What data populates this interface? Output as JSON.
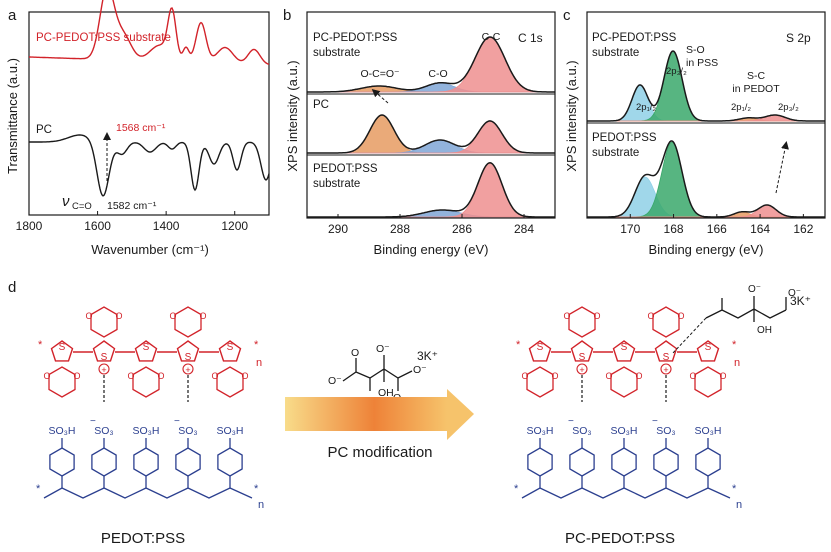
{
  "colors": {
    "red": "#d2232a",
    "black": "#1a1a1a",
    "blue": "#2b3f8f",
    "peak_red": "#ee8f8f",
    "peak_orange": "#e69b62",
    "peak_blue": "#7fa6d6",
    "peak_green": "#39a86b",
    "peak_cyan": "#8fd0e6",
    "arrow_start": "#f8dc8a",
    "arrow_mid": "#ee8238",
    "arrow_end": "#f6c36b"
  },
  "panel_labels": {
    "a": "a",
    "b": "b",
    "c": "c",
    "d": "d"
  },
  "panel_a": {
    "xlabel": "Wavenumber (cm⁻¹)",
    "ylabel": "Transmittance (a.u.)",
    "ticks": [
      "1800",
      "1600",
      "1400",
      "1200"
    ],
    "label_top": "PC-PEDOT:PSS substrate",
    "label_bottom": "PC",
    "ann_red": "1568 cm⁻¹",
    "ann_black": "1582 cm⁻¹",
    "nu_symbol": "ν",
    "nu_sub": "C=O"
  },
  "panel_b": {
    "corner": "C 1s",
    "xlabel": "Binding energy (eV)",
    "ylabel": "XPS intensity (a.u.)",
    "ticks": [
      "290",
      "288",
      "286",
      "284"
    ],
    "label_1a": "PC-PEDOT:PSS",
    "label_1b": "substrate",
    "label_2": "PC",
    "label_3a": "PEDOT:PSS",
    "label_3b": "substrate",
    "peak_cc": "C-C",
    "peak_co": "C-O",
    "peak_oco": "O-C=O⁻"
  },
  "panel_c": {
    "corner": "S 2p",
    "xlabel": "Binding energy (eV)",
    "ylabel": "XPS intensity (a.u.)",
    "ticks": [
      "170",
      "168",
      "166",
      "164",
      "162"
    ],
    "label_1a": "PC-PEDOT:PSS",
    "label_1b": "substrate",
    "label_2a": "PEDOT:PSS",
    "label_2b": "substrate",
    "so_a": "S-O",
    "so_b": "in PSS",
    "sc_a": "S-C",
    "sc_b": "in PEDOT",
    "p12": "2p₁/₂",
    "p32": "2p₃/₂"
  },
  "panel_d": {
    "reagent_charge": "3K⁺",
    "reagent_oh": "OH",
    "reagent_om": "O⁻",
    "arrow_label": "PC modification",
    "left_caption": "PEDOT:PSS",
    "right_caption": "PC-PEDOT:PSS",
    "so3h": "SO₃H",
    "so3": "SO₃",
    "thiophene_s": "S",
    "ring_o": "O",
    "index_n": "n",
    "end_star": "*",
    "minus": "−",
    "plus": "+"
  },
  "chart_data": [
    {
      "type": "line",
      "xlabel": "Wavenumber (cm⁻¹)",
      "ylabel": "Transmittance (a.u.)",
      "xlim": [
        1800,
        1100
      ],
      "x_ticks": [
        1800,
        1600,
        1400,
        1200
      ],
      "series": [
        {
          "name": "PC-PEDOT:PSS substrate",
          "minimum_at": 1568
        },
        {
          "name": "PC",
          "minimum_at": 1582
        }
      ]
    },
    {
      "type": "line",
      "xlabel": "Binding energy (eV)",
      "ylabel": "XPS intensity (a.u.)",
      "xlim": [
        291,
        283
      ],
      "x_ticks": [
        290,
        288,
        286,
        284
      ],
      "series": [
        {
          "name": "PC-PEDOT:PSS substrate",
          "peaks": [
            {
              "label": "C-C",
              "center": 284.8
            },
            {
              "label": "C-O",
              "center": 286.2
            },
            {
              "label": "O-C=O⁻",
              "center": 288.0
            }
          ]
        },
        {
          "name": "PC",
          "peaks": [
            {
              "label": "O-C=O⁻",
              "center": 288.0
            },
            {
              "label": "C-O",
              "center": 286.2
            },
            {
              "label": "C-C",
              "center": 284.8
            }
          ]
        },
        {
          "name": "PEDOT:PSS substrate",
          "peaks": [
            {
              "label": "C-C",
              "center": 284.8
            },
            {
              "label": "C-O",
              "center": 286.2
            }
          ]
        }
      ]
    },
    {
      "type": "line",
      "xlabel": "Binding energy (eV)",
      "ylabel": "XPS intensity (a.u.)",
      "xlim": [
        172,
        161
      ],
      "x_ticks": [
        170,
        168,
        166,
        164,
        162
      ],
      "series": [
        {
          "name": "PC-PEDOT:PSS substrate",
          "peaks": [
            {
              "label": "2p₃/₂",
              "center": 167.8
            },
            {
              "label": "2p₁/₂",
              "center": 169.0
            },
            {
              "label": "2p₃/₂",
              "center": 163.5
            },
            {
              "label": "2p₁/₂",
              "center": 164.6
            }
          ]
        },
        {
          "name": "PEDOT:PSS substrate",
          "peaks": [
            {
              "label": "2p₃/₂",
              "center": 167.8
            },
            {
              "label": "2p₁/₂",
              "center": 169.0
            },
            {
              "label": "2p₃/₂",
              "center": 163.8
            },
            {
              "label": "2p₁/₂",
              "center": 164.9
            }
          ]
        }
      ]
    }
  ]
}
